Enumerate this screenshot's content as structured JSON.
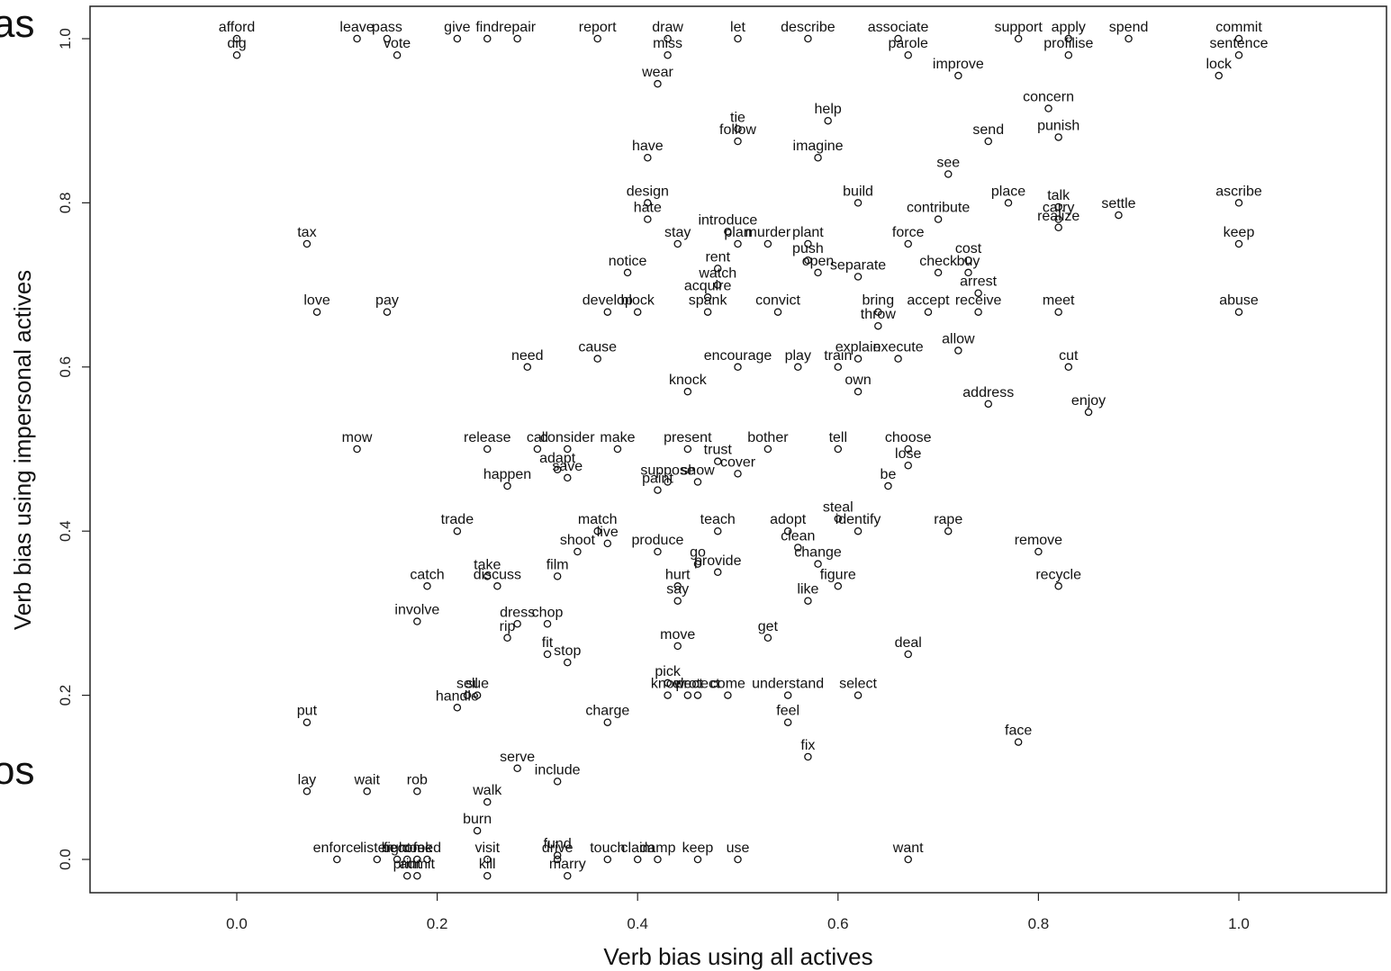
{
  "left_fragments": [
    "as",
    "os"
  ],
  "chart_data": {
    "type": "scatter",
    "xlabel": "Verb bias using all actives",
    "ylabel": "Verb bias using impersonal actives",
    "xlim": [
      -0.15,
      1.15
    ],
    "ylim": [
      -0.04,
      1.04
    ],
    "xticks": [
      "0.0",
      "0.2",
      "0.4",
      "0.6",
      "0.8",
      "1.0"
    ],
    "yticks": [
      "0.0",
      "0.2",
      "0.4",
      "0.6",
      "0.8",
      "1.0"
    ],
    "grid": false,
    "marker": "open-circle",
    "points": [
      {
        "x": 0.0,
        "y": 1.0,
        "label": "afford"
      },
      {
        "x": 0.0,
        "y": 0.98,
        "label": "dig"
      },
      {
        "x": 0.12,
        "y": 1.0,
        "label": "leave"
      },
      {
        "x": 0.15,
        "y": 1.0,
        "label": "pass"
      },
      {
        "x": 0.16,
        "y": 0.98,
        "label": "vote"
      },
      {
        "x": 0.22,
        "y": 1.0,
        "label": "give"
      },
      {
        "x": 0.25,
        "y": 1.0,
        "label": "find"
      },
      {
        "x": 0.28,
        "y": 1.0,
        "label": "repair"
      },
      {
        "x": 0.36,
        "y": 1.0,
        "label": "report"
      },
      {
        "x": 0.43,
        "y": 1.0,
        "label": "draw"
      },
      {
        "x": 0.43,
        "y": 0.98,
        "label": "miss"
      },
      {
        "x": 0.5,
        "y": 1.0,
        "label": "let"
      },
      {
        "x": 0.57,
        "y": 1.0,
        "label": "describe"
      },
      {
        "x": 0.66,
        "y": 1.0,
        "label": "associate"
      },
      {
        "x": 0.67,
        "y": 0.98,
        "label": "parole"
      },
      {
        "x": 0.78,
        "y": 1.0,
        "label": "support"
      },
      {
        "x": 0.83,
        "y": 1.0,
        "label": "apply"
      },
      {
        "x": 0.83,
        "y": 0.98,
        "label": "profilise"
      },
      {
        "x": 0.89,
        "y": 1.0,
        "label": "spend"
      },
      {
        "x": 1.0,
        "y": 1.0,
        "label": "commit"
      },
      {
        "x": 1.0,
        "y": 0.98,
        "label": "sentence"
      },
      {
        "x": 0.98,
        "y": 0.955,
        "label": "lock"
      },
      {
        "x": 0.72,
        "y": 0.955,
        "label": "improve"
      },
      {
        "x": 0.42,
        "y": 0.945,
        "label": "wear"
      },
      {
        "x": 0.81,
        "y": 0.915,
        "label": "concern"
      },
      {
        "x": 0.59,
        "y": 0.9,
        "label": "help"
      },
      {
        "x": 0.5,
        "y": 0.89,
        "label": "tie"
      },
      {
        "x": 0.75,
        "y": 0.875,
        "label": "send"
      },
      {
        "x": 0.5,
        "y": 0.875,
        "label": "follow"
      },
      {
        "x": 0.82,
        "y": 0.88,
        "label": "punish"
      },
      {
        "x": 0.41,
        "y": 0.855,
        "label": "have"
      },
      {
        "x": 0.58,
        "y": 0.855,
        "label": "imagine"
      },
      {
        "x": 0.71,
        "y": 0.835,
        "label": "see"
      },
      {
        "x": 0.41,
        "y": 0.8,
        "label": "design"
      },
      {
        "x": 0.62,
        "y": 0.8,
        "label": "build"
      },
      {
        "x": 0.7,
        "y": 0.78,
        "label": "contribute"
      },
      {
        "x": 0.77,
        "y": 0.8,
        "label": "place"
      },
      {
        "x": 0.82,
        "y": 0.795,
        "label": "talk"
      },
      {
        "x": 0.82,
        "y": 0.78,
        "label": "carry"
      },
      {
        "x": 0.82,
        "y": 0.77,
        "label": "realize"
      },
      {
        "x": 1.0,
        "y": 0.8,
        "label": "ascribe"
      },
      {
        "x": 0.88,
        "y": 0.785,
        "label": "settle"
      },
      {
        "x": 0.07,
        "y": 0.75,
        "label": "tax"
      },
      {
        "x": 0.49,
        "y": 0.765,
        "label": "introduce"
      },
      {
        "x": 0.41,
        "y": 0.78,
        "label": "hate"
      },
      {
        "x": 0.44,
        "y": 0.75,
        "label": "stay"
      },
      {
        "x": 0.5,
        "y": 0.75,
        "label": "plan"
      },
      {
        "x": 0.53,
        "y": 0.75,
        "label": "murder"
      },
      {
        "x": 0.57,
        "y": 0.75,
        "label": "plant"
      },
      {
        "x": 0.57,
        "y": 0.73,
        "label": "push"
      },
      {
        "x": 0.67,
        "y": 0.75,
        "label": "force"
      },
      {
        "x": 0.73,
        "y": 0.73,
        "label": "cost"
      },
      {
        "x": 1.0,
        "y": 0.75,
        "label": "keep"
      },
      {
        "x": 0.39,
        "y": 0.715,
        "label": "notice"
      },
      {
        "x": 0.48,
        "y": 0.72,
        "label": "rent"
      },
      {
        "x": 0.48,
        "y": 0.7,
        "label": "watch"
      },
      {
        "x": 0.58,
        "y": 0.715,
        "label": "open"
      },
      {
        "x": 0.62,
        "y": 0.71,
        "label": "separate"
      },
      {
        "x": 0.7,
        "y": 0.715,
        "label": "check"
      },
      {
        "x": 0.73,
        "y": 0.715,
        "label": "buy"
      },
      {
        "x": 0.74,
        "y": 0.69,
        "label": "arrest"
      },
      {
        "x": 0.47,
        "y": 0.685,
        "label": "acquire"
      },
      {
        "x": 0.08,
        "y": 0.667,
        "label": "love"
      },
      {
        "x": 0.15,
        "y": 0.667,
        "label": "pay"
      },
      {
        "x": 0.37,
        "y": 0.667,
        "label": "develop"
      },
      {
        "x": 0.4,
        "y": 0.667,
        "label": "block"
      },
      {
        "x": 0.47,
        "y": 0.667,
        "label": "spank"
      },
      {
        "x": 0.54,
        "y": 0.667,
        "label": "convict"
      },
      {
        "x": 0.64,
        "y": 0.667,
        "label": "bring"
      },
      {
        "x": 0.64,
        "y": 0.65,
        "label": "throw"
      },
      {
        "x": 0.69,
        "y": 0.667,
        "label": "accept"
      },
      {
        "x": 0.74,
        "y": 0.667,
        "label": "receive"
      },
      {
        "x": 0.82,
        "y": 0.667,
        "label": "meet"
      },
      {
        "x": 1.0,
        "y": 0.667,
        "label": "abuse"
      },
      {
        "x": 0.36,
        "y": 0.61,
        "label": "cause"
      },
      {
        "x": 0.5,
        "y": 0.6,
        "label": "encourage"
      },
      {
        "x": 0.56,
        "y": 0.6,
        "label": "play"
      },
      {
        "x": 0.6,
        "y": 0.6,
        "label": "train"
      },
      {
        "x": 0.62,
        "y": 0.61,
        "label": "explain"
      },
      {
        "x": 0.66,
        "y": 0.61,
        "label": "execute"
      },
      {
        "x": 0.72,
        "y": 0.62,
        "label": "allow"
      },
      {
        "x": 0.83,
        "y": 0.6,
        "label": "cut"
      },
      {
        "x": 0.29,
        "y": 0.6,
        "label": "need"
      },
      {
        "x": 0.45,
        "y": 0.57,
        "label": "knock"
      },
      {
        "x": 0.62,
        "y": 0.57,
        "label": "own"
      },
      {
        "x": 0.75,
        "y": 0.555,
        "label": "address"
      },
      {
        "x": 0.85,
        "y": 0.545,
        "label": "enjoy"
      },
      {
        "x": 0.12,
        "y": 0.5,
        "label": "mow"
      },
      {
        "x": 0.25,
        "y": 0.5,
        "label": "release"
      },
      {
        "x": 0.3,
        "y": 0.5,
        "label": "call"
      },
      {
        "x": 0.33,
        "y": 0.5,
        "label": "consider"
      },
      {
        "x": 0.38,
        "y": 0.5,
        "label": "make"
      },
      {
        "x": 0.45,
        "y": 0.5,
        "label": "present"
      },
      {
        "x": 0.53,
        "y": 0.5,
        "label": "bother"
      },
      {
        "x": 0.6,
        "y": 0.5,
        "label": "tell"
      },
      {
        "x": 0.67,
        "y": 0.5,
        "label": "choose"
      },
      {
        "x": 0.67,
        "y": 0.48,
        "label": "lose"
      },
      {
        "x": 0.32,
        "y": 0.475,
        "label": "adapt"
      },
      {
        "x": 0.48,
        "y": 0.485,
        "label": "trust"
      },
      {
        "x": 0.5,
        "y": 0.47,
        "label": "cover"
      },
      {
        "x": 0.43,
        "y": 0.46,
        "label": "suppose"
      },
      {
        "x": 0.46,
        "y": 0.46,
        "label": "show"
      },
      {
        "x": 0.27,
        "y": 0.455,
        "label": "happen"
      },
      {
        "x": 0.33,
        "y": 0.465,
        "label": "save"
      },
      {
        "x": 0.42,
        "y": 0.45,
        "label": "paint"
      },
      {
        "x": 0.65,
        "y": 0.455,
        "label": "be"
      },
      {
        "x": 0.22,
        "y": 0.4,
        "label": "trade"
      },
      {
        "x": 0.36,
        "y": 0.4,
        "label": "match"
      },
      {
        "x": 0.48,
        "y": 0.4,
        "label": "teach"
      },
      {
        "x": 0.55,
        "y": 0.4,
        "label": "adopt"
      },
      {
        "x": 0.6,
        "y": 0.415,
        "label": "steal"
      },
      {
        "x": 0.62,
        "y": 0.4,
        "label": "identify"
      },
      {
        "x": 0.71,
        "y": 0.4,
        "label": "rape"
      },
      {
        "x": 0.8,
        "y": 0.375,
        "label": "remove"
      },
      {
        "x": 0.34,
        "y": 0.375,
        "label": "shoot"
      },
      {
        "x": 0.37,
        "y": 0.385,
        "label": "live"
      },
      {
        "x": 0.42,
        "y": 0.375,
        "label": "produce"
      },
      {
        "x": 0.56,
        "y": 0.38,
        "label": "clean"
      },
      {
        "x": 0.58,
        "y": 0.36,
        "label": "change"
      },
      {
        "x": 0.46,
        "y": 0.36,
        "label": "go"
      },
      {
        "x": 0.48,
        "y": 0.35,
        "label": "provide"
      },
      {
        "x": 0.19,
        "y": 0.333,
        "label": "catch"
      },
      {
        "x": 0.25,
        "y": 0.345,
        "label": "take"
      },
      {
        "x": 0.32,
        "y": 0.345,
        "label": "film"
      },
      {
        "x": 0.44,
        "y": 0.333,
        "label": "hurt"
      },
      {
        "x": 0.26,
        "y": 0.333,
        "label": "discuss"
      },
      {
        "x": 0.57,
        "y": 0.315,
        "label": "like"
      },
      {
        "x": 0.6,
        "y": 0.333,
        "label": "figure"
      },
      {
        "x": 0.82,
        "y": 0.333,
        "label": "recycle"
      },
      {
        "x": 0.28,
        "y": 0.287,
        "label": "dress"
      },
      {
        "x": 0.31,
        "y": 0.287,
        "label": "chop"
      },
      {
        "x": 0.44,
        "y": 0.315,
        "label": "say"
      },
      {
        "x": 0.18,
        "y": 0.29,
        "label": "involve"
      },
      {
        "x": 0.27,
        "y": 0.27,
        "label": "rip"
      },
      {
        "x": 0.31,
        "y": 0.25,
        "label": "fit"
      },
      {
        "x": 0.33,
        "y": 0.24,
        "label": "stop"
      },
      {
        "x": 0.44,
        "y": 0.26,
        "label": "move"
      },
      {
        "x": 0.53,
        "y": 0.27,
        "label": "get"
      },
      {
        "x": 0.67,
        "y": 0.25,
        "label": "deal"
      },
      {
        "x": 0.43,
        "y": 0.215,
        "label": "pick"
      },
      {
        "x": 0.45,
        "y": 0.2,
        "label": "elect"
      },
      {
        "x": 0.55,
        "y": 0.2,
        "label": "understand"
      },
      {
        "x": 0.49,
        "y": 0.2,
        "label": "come"
      },
      {
        "x": 0.62,
        "y": 0.2,
        "label": "select"
      },
      {
        "x": 0.23,
        "y": 0.2,
        "label": "sell"
      },
      {
        "x": 0.24,
        "y": 0.2,
        "label": "sue"
      },
      {
        "x": 0.22,
        "y": 0.185,
        "label": "handle"
      },
      {
        "x": 0.43,
        "y": 0.2,
        "label": "know"
      },
      {
        "x": 0.46,
        "y": 0.2,
        "label": "protect"
      },
      {
        "x": 0.07,
        "y": 0.167,
        "label": "put"
      },
      {
        "x": 0.37,
        "y": 0.167,
        "label": "charge"
      },
      {
        "x": 0.55,
        "y": 0.167,
        "label": "feel"
      },
      {
        "x": 0.78,
        "y": 0.143,
        "label": "face"
      },
      {
        "x": 0.57,
        "y": 0.125,
        "label": "fix"
      },
      {
        "x": 0.28,
        "y": 0.111,
        "label": "serve"
      },
      {
        "x": 0.32,
        "y": 0.095,
        "label": "include"
      },
      {
        "x": 0.07,
        "y": 0.083,
        "label": "lay"
      },
      {
        "x": 0.13,
        "y": 0.083,
        "label": "wait"
      },
      {
        "x": 0.18,
        "y": 0.083,
        "label": "rob"
      },
      {
        "x": 0.25,
        "y": 0.07,
        "label": "walk"
      },
      {
        "x": 0.24,
        "y": 0.035,
        "label": "burn"
      },
      {
        "x": 0.17,
        "y": 0.0,
        "label": "become"
      },
      {
        "x": 0.18,
        "y": 0.0,
        "label": "cook"
      },
      {
        "x": 0.19,
        "y": 0.0,
        "label": "feed"
      },
      {
        "x": 0.1,
        "y": 0.0,
        "label": "enforce"
      },
      {
        "x": 0.14,
        "y": 0.0,
        "label": "listen"
      },
      {
        "x": 0.16,
        "y": 0.0,
        "label": "fight"
      },
      {
        "x": 0.17,
        "y": -0.02,
        "label": "print"
      },
      {
        "x": 0.18,
        "y": -0.02,
        "label": "admit"
      },
      {
        "x": 0.25,
        "y": 0.0,
        "label": "visit"
      },
      {
        "x": 0.32,
        "y": 0.005,
        "label": "fund"
      },
      {
        "x": 0.32,
        "y": 0.0,
        "label": "drive"
      },
      {
        "x": 0.37,
        "y": 0.0,
        "label": "touch"
      },
      {
        "x": 0.25,
        "y": -0.02,
        "label": "kill"
      },
      {
        "x": 0.33,
        "y": -0.02,
        "label": "marry"
      },
      {
        "x": 0.4,
        "y": 0.0,
        "label": "claim"
      },
      {
        "x": 0.42,
        "y": 0.0,
        "label": "damp"
      },
      {
        "x": 0.46,
        "y": 0.0,
        "label": "keep"
      },
      {
        "x": 0.5,
        "y": 0.0,
        "label": "use"
      },
      {
        "x": 0.67,
        "y": 0.0,
        "label": "want"
      }
    ]
  }
}
